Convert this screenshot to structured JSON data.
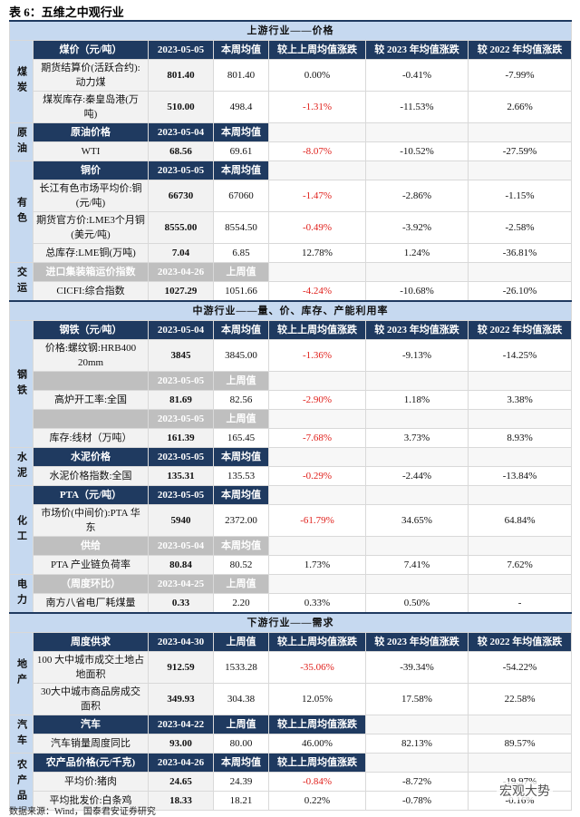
{
  "title": "表 6：五维之中观行业",
  "sections": [
    {
      "title": "上游行业——价格",
      "groups": [
        {
          "label": "煤炭",
          "rows": [
            {
              "kind": "header",
              "cells": [
                "煤价（元/吨）",
                "2023-05-05",
                "本周均值",
                "较上上周均值涨跌",
                "较 2023 年均值涨跌",
                "较 2022 年均值涨跌"
              ]
            },
            {
              "kind": "data",
              "cells": [
                "期货结算价(活跃合约):动力煤",
                "801.40",
                "801.40",
                "0.00%",
                "-0.41%",
                "-7.99%"
              ]
            },
            {
              "kind": "data",
              "cells": [
                "煤炭库存:秦皇岛港(万吨)",
                "510.00",
                "498.4",
                "-1.31%",
                "-11.53%",
                "2.66%"
              ]
            }
          ]
        },
        {
          "label": "原油",
          "rows": [
            {
              "kind": "header",
              "cells": [
                "原油价格",
                "2023-05-04",
                "本周均值"
              ]
            },
            {
              "kind": "data",
              "cells": [
                "WTI",
                "68.56",
                "69.61",
                "-8.07%",
                "-10.52%",
                "-27.59%"
              ]
            }
          ]
        },
        {
          "label": "有色",
          "rows": [
            {
              "kind": "header",
              "cells": [
                "铜价",
                "2023-05-05",
                "本周均值"
              ]
            },
            {
              "kind": "data",
              "cells": [
                "长江有色市场平均价:铜(元/吨)",
                "66730",
                "67060",
                "-1.47%",
                "-2.86%",
                "-1.15%"
              ]
            },
            {
              "kind": "data",
              "cells": [
                "期货官方价:LME3个月铜(美元/吨)",
                "8555.00",
                "8554.50",
                "-0.49%",
                "-3.92%",
                "-2.58%"
              ]
            },
            {
              "kind": "data",
              "cells": [
                "总库存:LME铜(万吨)",
                "7.04",
                "6.85",
                "12.78%",
                "1.24%",
                "-36.81%"
              ]
            }
          ]
        },
        {
          "label": "交运",
          "rows": [
            {
              "kind": "subheader",
              "cells": [
                "进口集装箱运价指数",
                "2023-04-26",
                "上周值"
              ]
            },
            {
              "kind": "data",
              "cells": [
                "CICFI:综合指数",
                "1027.29",
                "1051.66",
                "-4.24%",
                "-10.68%",
                "-26.10%"
              ]
            }
          ]
        }
      ]
    },
    {
      "title": "中游行业——量、价、库存、产能利用率",
      "groups": [
        {
          "label": "钢铁",
          "rows": [
            {
              "kind": "header",
              "cells": [
                "钢铁（元/吨）",
                "2023-05-04",
                "本周均值",
                "较上上周均值涨跌",
                "较 2023 年均值涨跌",
                "较 2022 年均值涨跌"
              ]
            },
            {
              "kind": "data",
              "cells": [
                "价格:螺纹钢:HRB400 20mm",
                "3845",
                "3845.00",
                "-1.36%",
                "-9.13%",
                "-14.25%"
              ]
            },
            {
              "kind": "subheader",
              "cells": [
                null,
                "2023-05-05",
                "上周值"
              ]
            },
            {
              "kind": "data",
              "cells": [
                "高炉开工率:全国",
                "81.69",
                "82.56",
                "-2.90%",
                "1.18%",
                "3.38%"
              ]
            },
            {
              "kind": "subheader",
              "cells": [
                null,
                "2023-05-05",
                "上周值"
              ]
            },
            {
              "kind": "data",
              "cells": [
                "库存:线材（万吨）",
                "161.39",
                "165.45",
                "-7.68%",
                "3.73%",
                "8.93%"
              ]
            }
          ]
        },
        {
          "label": "水泥",
          "rows": [
            {
              "kind": "header",
              "cells": [
                "水泥价格",
                "2023-05-05",
                "本周均值"
              ]
            },
            {
              "kind": "data",
              "cells": [
                "水泥价格指数:全国",
                "135.31",
                "135.53",
                "-0.29%",
                "-2.44%",
                "-13.84%"
              ]
            }
          ]
        },
        {
          "label": "化工",
          "rows": [
            {
              "kind": "header",
              "cells": [
                "PTA（元/吨）",
                "2023-05-05",
                "本周均值"
              ]
            },
            {
              "kind": "data",
              "cells": [
                "市场价(中间价):PTA 华东",
                "5940",
                "2372.00",
                "-61.79%",
                "34.65%",
                "64.84%"
              ]
            },
            {
              "kind": "subheader",
              "cells": [
                "供给",
                "2023-05-04",
                "本周均值"
              ]
            },
            {
              "kind": "data",
              "cells": [
                "PTA 产业链负荷率",
                "80.84",
                "80.52",
                "1.73%",
                "7.41%",
                "7.62%"
              ]
            }
          ]
        },
        {
          "label": "电力",
          "rows": [
            {
              "kind": "subheader",
              "cells": [
                "（周度环比）",
                "2023-04-25",
                "上周值"
              ]
            },
            {
              "kind": "data",
              "cells": [
                "南方八省电厂耗煤量",
                "0.33",
                "2.20",
                "0.33%",
                "0.50%",
                "-"
              ]
            }
          ]
        }
      ]
    },
    {
      "title": "下游行业——需求",
      "groups": [
        {
          "label": "地产",
          "rows": [
            {
              "kind": "header",
              "cells": [
                "周度供求",
                "2023-04-30",
                "上周值",
                "较上上周均值涨跌",
                "较 2023 年均值涨跌",
                "较 2022 年均值涨跌"
              ]
            },
            {
              "kind": "data",
              "cells": [
                "100 大中城市成交土地占地面积",
                "912.59",
                "1533.28",
                "-35.06%",
                "-39.34%",
                "-54.22%"
              ]
            },
            {
              "kind": "data",
              "cells": [
                "30大中城市商品房成交面积",
                "349.93",
                "304.38",
                "12.05%",
                "17.58%",
                "22.58%"
              ]
            }
          ]
        },
        {
          "label": "汽车",
          "rows": [
            {
              "kind": "header",
              "cells": [
                "汽车",
                "2023-04-22",
                "上周值",
                "较上上周均值涨跌"
              ]
            },
            {
              "kind": "data",
              "cells": [
                "汽车销量周度同比",
                "93.00",
                "80.00",
                "46.00%",
                "82.13%",
                "89.57%"
              ]
            }
          ]
        },
        {
          "label": "农产品",
          "rows": [
            {
              "kind": "header",
              "cells": [
                "农产品价格(元/千克)",
                "2023-04-26",
                "本周均值",
                "较上上周均值涨跌"
              ]
            },
            {
              "kind": "data",
              "cells": [
                "平均价:猪肉",
                "24.65",
                "24.39",
                "-0.84%",
                "-8.72%",
                "-19.97%"
              ]
            },
            {
              "kind": "data",
              "cells": [
                "平均批发价:白条鸡",
                "18.33",
                "18.21",
                "0.22%",
                "-0.78%",
                "-0.16%"
              ]
            }
          ]
        }
      ]
    }
  ],
  "source": "数据来源：Wind，国泰君安证券研究",
  "watermark": "宏观大势"
}
